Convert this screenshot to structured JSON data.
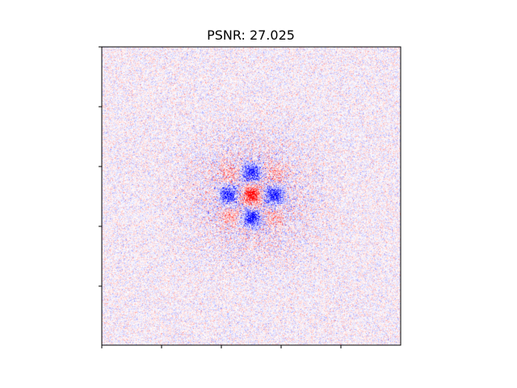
{
  "chart_data": {
    "type": "heatmap",
    "title": "PSNR: 27.025",
    "xlabel": "",
    "ylabel": "",
    "x_tick_labels": [
      "",
      "",
      "",
      "",
      ""
    ],
    "y_tick_labels": [
      "",
      "",
      "",
      "",
      ""
    ],
    "grid": false,
    "legend": "none",
    "colormap": "bwr",
    "value_range": [
      -1,
      1
    ],
    "colors": {
      "negative": "#0000ff",
      "zero": "#ffffff",
      "positive": "#ff0000"
    },
    "pattern": {
      "center": {
        "value": 1.0
      },
      "edge_neighbors": {
        "value": -0.9
      },
      "corner_neighbors": {
        "value": 0.25
      },
      "background_noise": {
        "amplitude": 0.15
      }
    }
  }
}
